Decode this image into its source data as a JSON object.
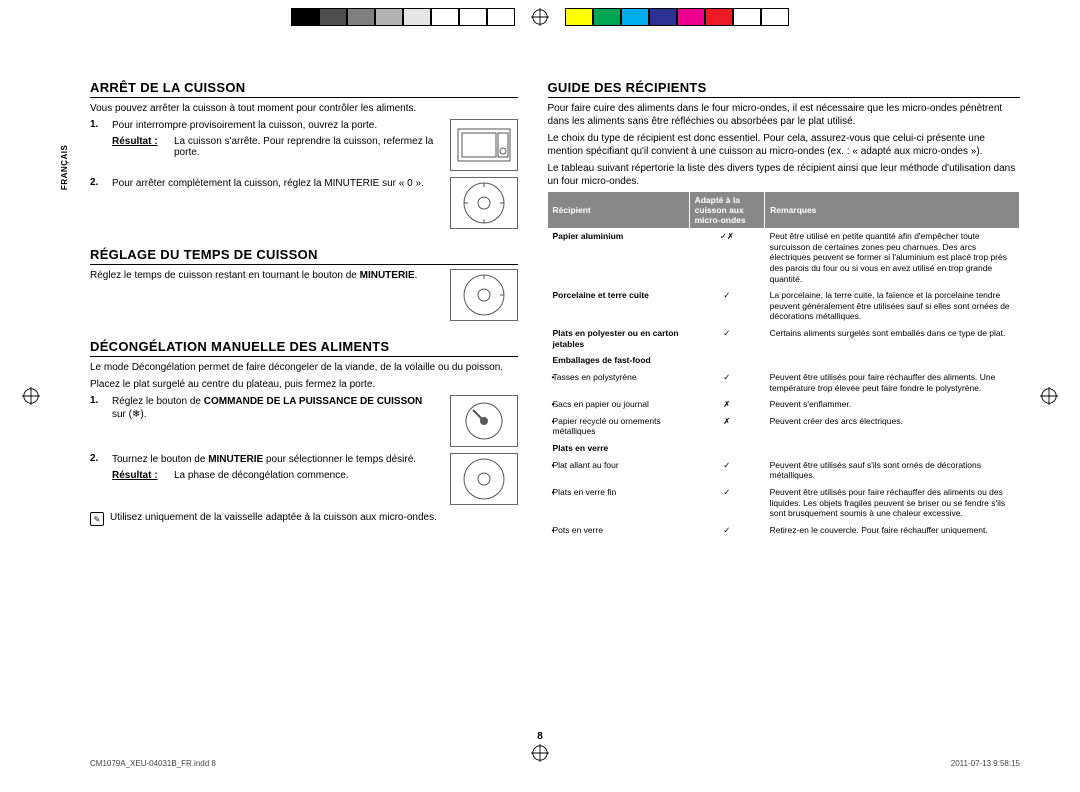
{
  "colorbar": {
    "left_colors": [
      "#000000",
      "#4d4d4d",
      "#808080",
      "#b3b3b3",
      "#e6e6e6",
      "#ffffff",
      "#ffffff",
      "#ffffff"
    ],
    "right_colors": [
      "#ffff00",
      "#00a651",
      "#00aeef",
      "#2e3192",
      "#ec008c",
      "#ed1c24",
      "#ffffff",
      "#ffffff"
    ]
  },
  "lang_tab": "FRANÇAIS",
  "left": {
    "sec1": {
      "title": "ARRÊT DE LA CUISSON",
      "intro": "Vous pouvez arrêter la cuisson à tout moment pour contrôler les aliments.",
      "step1_num": "1.",
      "step1_text": "Pour interrompre provisoirement la cuisson, ouvrez la porte.",
      "result_label": "Résultat :",
      "step1_result": "La cuisson s'arrête. Pour reprendre la cuisson, refermez la porte.",
      "step2_num": "2.",
      "step2_text": "Pour arrêter complètement la cuisson, réglez la MINUTERIE sur « 0 »."
    },
    "sec2": {
      "title": "RÉGLAGE DU TEMPS DE CUISSON",
      "text_a": "Réglez le temps de cuisson restant en tournant le bouton de ",
      "text_b": "MINUTERIE",
      "text_c": "."
    },
    "sec3": {
      "title": "DÉCONGÉLATION MANUELLE DES ALIMENTS",
      "p1": "Le mode Décongélation permet de faire décongeler de la viande, de la volaille ou du poisson.",
      "p2": "Placez le plat surgelé au centre du plateau, puis fermez la porte.",
      "step1_num": "1.",
      "step1_a": "Réglez le bouton de ",
      "step1_b": "COMMANDE DE LA PUISSANCE DE CUISSON",
      "step1_c": " sur (",
      "step1_d": ").",
      "step2_num": "2.",
      "step2_a": "Tournez le bouton de ",
      "step2_b": "MINUTERIE",
      "step2_c": " pour sélectionner le temps désiré.",
      "result_label": "Résultat :",
      "step2_result": "La phase de décongélation commence.",
      "note": "Utilisez uniquement de la vaisselle adaptée à la cuisson aux micro-ondes."
    }
  },
  "right": {
    "title": "GUIDE DES RÉCIPIENTS",
    "p1": "Pour faire cuire des aliments dans le four micro-ondes, il est nécessaire que les micro-ondes pénètrent dans les aliments sans être réfléchies ou absorbées par le plat utilisé.",
    "p2": "Le choix du type de récipient est donc essentiel. Pour cela, assurez-vous que celui-ci présente une mention spécifiant qu'il convient à une cuisson au micro-ondes (ex. : « adapté aux micro-ondes »).",
    "p3": "Le tableau suivant répertorie la liste des divers types de récipient ainsi que leur méthode d'utilisation dans un four micro-ondes.",
    "th1": "Récipient",
    "th2": "Adapté à la cuisson aux micro-ondes",
    "th3": "Remarques",
    "rows": [
      {
        "r": "Papier aluminium",
        "s": "✓✗",
        "n": "Peut être utilisé en petite quantité afin d'empêcher toute surcuisson de certaines zones peu charnues. Des arcs électriques peuvent se former si l'aluminium est placé trop près des parois du four ou si vous en avez utilisé en trop grande quantité."
      },
      {
        "r": "Porcelaine et terre cuite",
        "s": "✓",
        "n": "La porcelaine, la terre cuite, la faïence et la porcelaine tendre peuvent généralement être utilisées sauf si elles sont ornées de décorations métalliques."
      },
      {
        "r": "Plats en polyester ou en carton jetables",
        "s": "✓",
        "n": "Certains aliments surgelés sont emballés dans ce type de plat."
      },
      {
        "r": "Emballages de fast-food",
        "s": "",
        "n": ""
      },
      {
        "r": "Tasses en polystyrène",
        "s": "✓",
        "n": "Peuvent être utilisés pour faire réchauffer des aliments. Une température trop élevée peut faire fondre le polystyrène.",
        "b": true
      },
      {
        "r": "Sacs en papier ou journal",
        "s": "✗",
        "n": "Peuvent s'enflammer.",
        "b": true
      },
      {
        "r": "Papier recyclé ou ornements métalliques",
        "s": "✗",
        "n": "Peuvent créer des arcs électriques.",
        "b": true
      },
      {
        "r": "Plats en verre",
        "s": "",
        "n": ""
      },
      {
        "r": "Plat allant au four",
        "s": "✓",
        "n": "Peuvent être utilisés sauf s'ils sont ornés de décorations métalliques.",
        "b": true
      },
      {
        "r": "Plats en verre fin",
        "s": "✓",
        "n": "Peuvent être utilisés pour faire réchauffer des aliments ou des liquides. Les objets fragiles peuvent se briser ou se fendre s'ils sont brusquement soumis à une chaleur excessive.",
        "b": true
      },
      {
        "r": "Pots en verre",
        "s": "✓",
        "n": "Retirez-en le couvercle. Pour faire réchauffer uniquement.",
        "b": true
      }
    ]
  },
  "page_number": "8",
  "footer_left": "CM1079A_XEU-04031B_FR.indd   8",
  "footer_right": "2011-07-13   9:58:15"
}
